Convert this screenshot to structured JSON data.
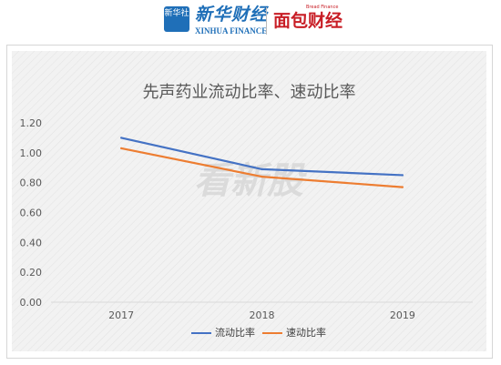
{
  "header": {
    "logo1_badge": "新华社",
    "logo1_name": "新华财经",
    "logo1_en": "XINHUA FINANCE",
    "logo2_name": "面包财经",
    "logo2_en": "Bread Finance"
  },
  "watermark": "看新股",
  "colors": {
    "series1": "#4472c4",
    "series2": "#ed7d31",
    "plot_bg": "#f2f2f2",
    "axis": "#d9d9d9"
  },
  "chart_data": {
    "type": "line",
    "title": "先声药业流动比率、速动比率",
    "categories": [
      "2017",
      "2018",
      "2019"
    ],
    "series": [
      {
        "name": "流动比率",
        "values": [
          1.1,
          0.89,
          0.85
        ]
      },
      {
        "name": "速动比率",
        "values": [
          1.03,
          0.84,
          0.77
        ]
      }
    ],
    "ylim": [
      0,
      1.2
    ],
    "yticks": [
      "0.00",
      "0.20",
      "0.40",
      "0.60",
      "0.80",
      "1.00",
      "1.20"
    ],
    "grid": false,
    "legend": "bottom",
    "xlabel": "",
    "ylabel": ""
  }
}
